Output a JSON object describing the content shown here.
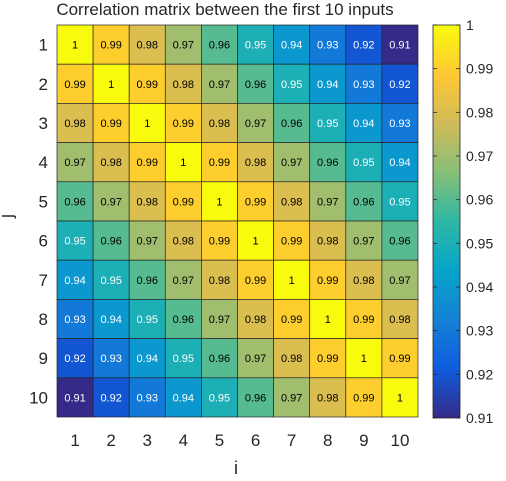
{
  "chart_data": {
    "type": "heatmap",
    "title": "Correlation matrix between the first 10 inputs",
    "xlabel": "i",
    "ylabel": "j",
    "x_categories": [
      "1",
      "2",
      "3",
      "4",
      "5",
      "6",
      "7",
      "8",
      "9",
      "10"
    ],
    "y_categories": [
      "1",
      "2",
      "3",
      "4",
      "5",
      "6",
      "7",
      "8",
      "9",
      "10"
    ],
    "values": [
      [
        1,
        0.99,
        0.98,
        0.97,
        0.96,
        0.95,
        0.94,
        0.93,
        0.92,
        0.91
      ],
      [
        0.99,
        1,
        0.99,
        0.98,
        0.97,
        0.96,
        0.95,
        0.94,
        0.93,
        0.92
      ],
      [
        0.98,
        0.99,
        1,
        0.99,
        0.98,
        0.97,
        0.96,
        0.95,
        0.94,
        0.93
      ],
      [
        0.97,
        0.98,
        0.99,
        1,
        0.99,
        0.98,
        0.97,
        0.96,
        0.95,
        0.94
      ],
      [
        0.96,
        0.97,
        0.98,
        0.99,
        1,
        0.99,
        0.98,
        0.97,
        0.96,
        0.95
      ],
      [
        0.95,
        0.96,
        0.97,
        0.98,
        0.99,
        1,
        0.99,
        0.98,
        0.97,
        0.96
      ],
      [
        0.94,
        0.95,
        0.96,
        0.97,
        0.98,
        0.99,
        1,
        0.99,
        0.98,
        0.97
      ],
      [
        0.93,
        0.94,
        0.95,
        0.96,
        0.97,
        0.98,
        0.99,
        1,
        0.99,
        0.98
      ],
      [
        0.92,
        0.93,
        0.94,
        0.95,
        0.96,
        0.97,
        0.98,
        0.99,
        1,
        0.99
      ],
      [
        0.91,
        0.92,
        0.93,
        0.94,
        0.95,
        0.96,
        0.97,
        0.98,
        0.99,
        1
      ]
    ],
    "colorbar": {
      "min": 0.91,
      "max": 1,
      "ticks": [
        0.91,
        0.92,
        0.93,
        0.94,
        0.95,
        0.96,
        0.97,
        0.98,
        0.99,
        1
      ],
      "tick_labels": [
        "0.91",
        "0.92",
        "0.93",
        "0.94",
        "0.95",
        "0.96",
        "0.97",
        "0.98",
        "0.99",
        "1"
      ]
    },
    "colormap": "parula",
    "colormap_stops": [
      "#352a87",
      "#0f5cdd",
      "#1481d6",
      "#06a4ca",
      "#2eb7a4",
      "#87bf77",
      "#d1bb59",
      "#fec832",
      "#f9fb0e"
    ]
  }
}
